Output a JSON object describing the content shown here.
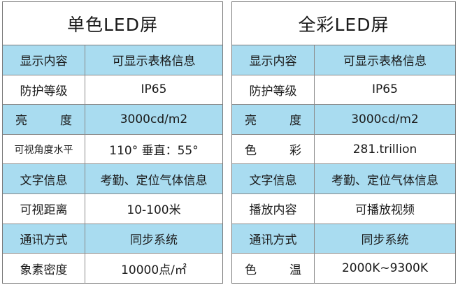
{
  "left_panel": {
    "title": "单色LED屏",
    "rows": [
      {
        "key": "显示内容",
        "value": "可显示表格信息"
      },
      {
        "key": "防护等级",
        "value": "IP65"
      },
      {
        "key_a": "亮",
        "key_b": "度",
        "value": "3000cd/m2"
      },
      {
        "key": "可视角度水平",
        "value": "110° 垂直：55°"
      },
      {
        "key": "文字信息",
        "value": "考勤、定位气体信息"
      },
      {
        "key": "可视距离",
        "value": "10-100米"
      },
      {
        "key": "通讯方式",
        "value": "同步系统"
      },
      {
        "key": "象素密度",
        "value": "10000点/㎡"
      }
    ]
  },
  "right_panel": {
    "title": "全彩LED屏",
    "rows": [
      {
        "key": "显示内容",
        "value": "可显示表格信息"
      },
      {
        "key": "防护等级",
        "value": "IP65"
      },
      {
        "key_a": "亮",
        "key_b": "度",
        "value": "3000cd/m2"
      },
      {
        "key_a": "色",
        "key_b": "彩",
        "value": "281.trillion"
      },
      {
        "key": "文字信息",
        "value": "考勤、定位气体信息"
      },
      {
        "key": "播放内容",
        "value": "可播放视频"
      },
      {
        "key": "通讯方式",
        "value": "同步系统"
      },
      {
        "key_a": "色",
        "key_b": "温",
        "value": "2000K~9300K"
      }
    ]
  },
  "colors": {
    "row_highlight": "#a9dcf0",
    "border": "#7a7a7a"
  }
}
